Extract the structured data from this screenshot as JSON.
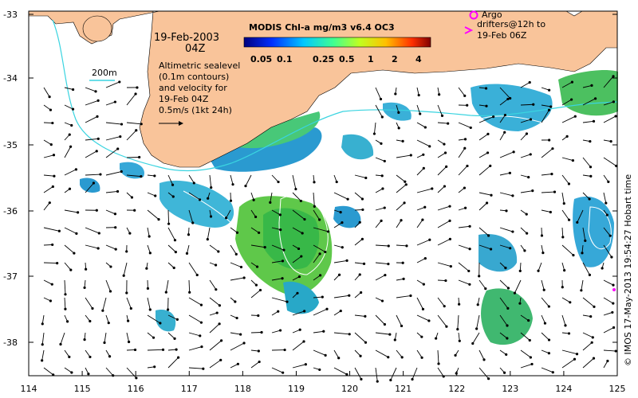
{
  "map": {
    "date_label": "19-Feb-2003",
    "time_label": "04Z",
    "bathy_label": "200m",
    "description_lines": [
      "Altimetric sealevel",
      "(0.1m contours)",
      "and velocity for",
      "19-Feb 04Z",
      "0.5m/s (1kt 24h)"
    ],
    "colorbar_title": "MODIS Chl-a mg/m3 v6.4 OC3",
    "colorbar_ticks": [
      "0.05",
      "0.1",
      "0.25",
      "0.5",
      "1",
      "2",
      "4"
    ],
    "argo_lines": [
      "Argo",
      "drifters@12h to",
      "19-Feb 06Z"
    ],
    "credit": "© IMOS 17-May-2013 19:54:27 Hobart time",
    "x_ticks": [
      "114",
      "115",
      "116",
      "117",
      "118",
      "119",
      "120",
      "121",
      "122",
      "123",
      "124",
      "125"
    ],
    "y_ticks": [
      "-33",
      "-34",
      "-35",
      "-36",
      "-37",
      "-38"
    ]
  },
  "colors": {
    "land": "#f9c49a",
    "bathy": "#3ad4e0",
    "argo": "#ff00ff"
  }
}
